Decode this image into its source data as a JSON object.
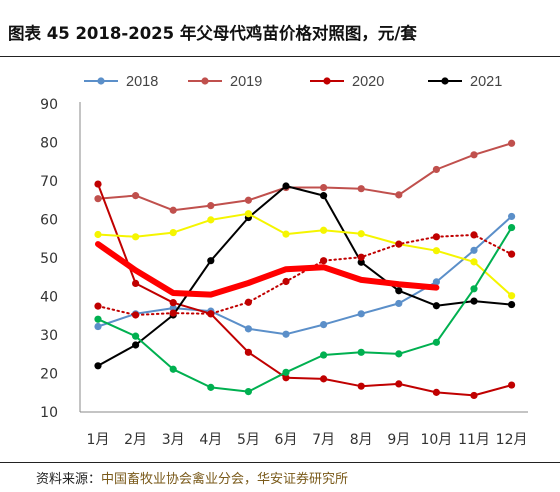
{
  "title": "图表 45 2018-2025 年父母代鸡苗价格对照图，元/套",
  "source": {
    "label": "资料来源：",
    "value": "中国畜牧业协会禽业分会，华安证券研究所"
  },
  "colors": {
    "2018": "#5b8fc9",
    "2019": "#c0504d",
    "2020": "#c00000",
    "2021": "#000000",
    "yellow": "#f5f500",
    "green": "#00b050",
    "dotted": "#c00000",
    "thick": "#ff0000"
  },
  "chart_data": {
    "type": "line",
    "title": "图表 45 2018-2025 年父母代鸡苗价格对照图，元/套",
    "xlabel": "",
    "ylabel": "",
    "categories": [
      "1月",
      "2月",
      "3月",
      "4月",
      "5月",
      "6月",
      "7月",
      "8月",
      "9月",
      "10月",
      "11月",
      "12月"
    ],
    "ylim": [
      10,
      90
    ],
    "yticks": [
      10,
      20,
      30,
      40,
      50,
      60,
      70,
      80,
      90
    ],
    "legend": {
      "placement": "top",
      "entries": [
        "2018",
        "2019",
        "2020",
        "2021"
      ]
    },
    "series": [
      {
        "name": "2018",
        "color": "#5b8fc9",
        "marker": "circle",
        "values": [
          32.2,
          35.5,
          37.0,
          36.2,
          31.6,
          30.2,
          32.7,
          35.5,
          38.2,
          43.8,
          52.0,
          60.8
        ]
      },
      {
        "name": "2019",
        "color": "#c0504d",
        "marker": "circle",
        "values": [
          65.4,
          66.2,
          62.4,
          63.6,
          65.0,
          68.3,
          68.3,
          68.0,
          66.4,
          73.0,
          76.8,
          79.8
        ]
      },
      {
        "name": "2020",
        "color": "#c00000",
        "marker": "circle",
        "values": [
          69.2,
          43.4,
          38.4,
          35.5,
          25.5,
          18.9,
          18.6,
          16.7,
          17.3,
          15.1,
          14.3,
          17.0
        ]
      },
      {
        "name": "2021",
        "color": "#000000",
        "marker": "circle",
        "values": [
          22.0,
          27.4,
          35.2,
          49.3,
          60.5,
          68.7,
          66.2,
          48.9,
          41.5,
          37.6,
          38.8,
          37.9
        ]
      },
      {
        "color": "#f5f500",
        "marker": "circle",
        "values": [
          56.1,
          55.5,
          56.6,
          59.9,
          61.5,
          56.2,
          57.2,
          56.3,
          53.6,
          51.9,
          49.0,
          40.2
        ]
      },
      {
        "color": "#00b050",
        "marker": "circle",
        "values": [
          34.1,
          29.7,
          21.1,
          16.4,
          15.3,
          20.3,
          24.8,
          25.5,
          25.1,
          28.1,
          42.0,
          57.9
        ]
      },
      {
        "color": "#c00000",
        "marker": "circle",
        "style": "dotted",
        "values": [
          37.5,
          35.2,
          35.7,
          35.5,
          38.5,
          43.9,
          49.3,
          50.2,
          53.6,
          55.5,
          56.0,
          51.0
        ]
      },
      {
        "color": "#ff0000",
        "marker": "none",
        "style": "thick",
        "values": [
          53.6,
          46.8,
          40.9,
          40.5,
          43.5,
          47.1,
          47.6,
          44.3,
          43.2,
          42.3,
          null,
          null
        ]
      }
    ]
  }
}
